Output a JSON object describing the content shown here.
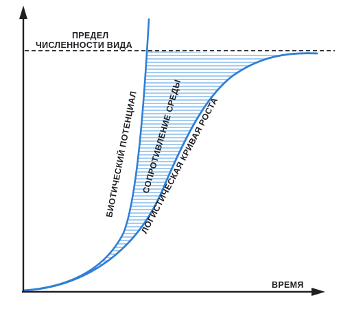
{
  "limit_label_line1": "ПРЕДЕЛ",
  "limit_label_line2": "ЧИСЛЕННОСТИ ВИДА",
  "time_label": "ВРЕМЯ",
  "biotic_potential_label": "БИОТИЧЕСКИЙ ПОТЕНЦИАЛ",
  "environment_resistance_label": "СОПРОТИВЛЕНИЕ СРЕДЫ",
  "logistic_curve_label": "ЛОГИСТИЧЕСКАЯ КРИВАЯ РОСТА",
  "colors": {
    "curve": "#2f7fd6",
    "hatch": "#8cc0ee",
    "axis": "#1f1f24",
    "limit_line": "#1f1f24",
    "text": "#1f1f24"
  }
}
